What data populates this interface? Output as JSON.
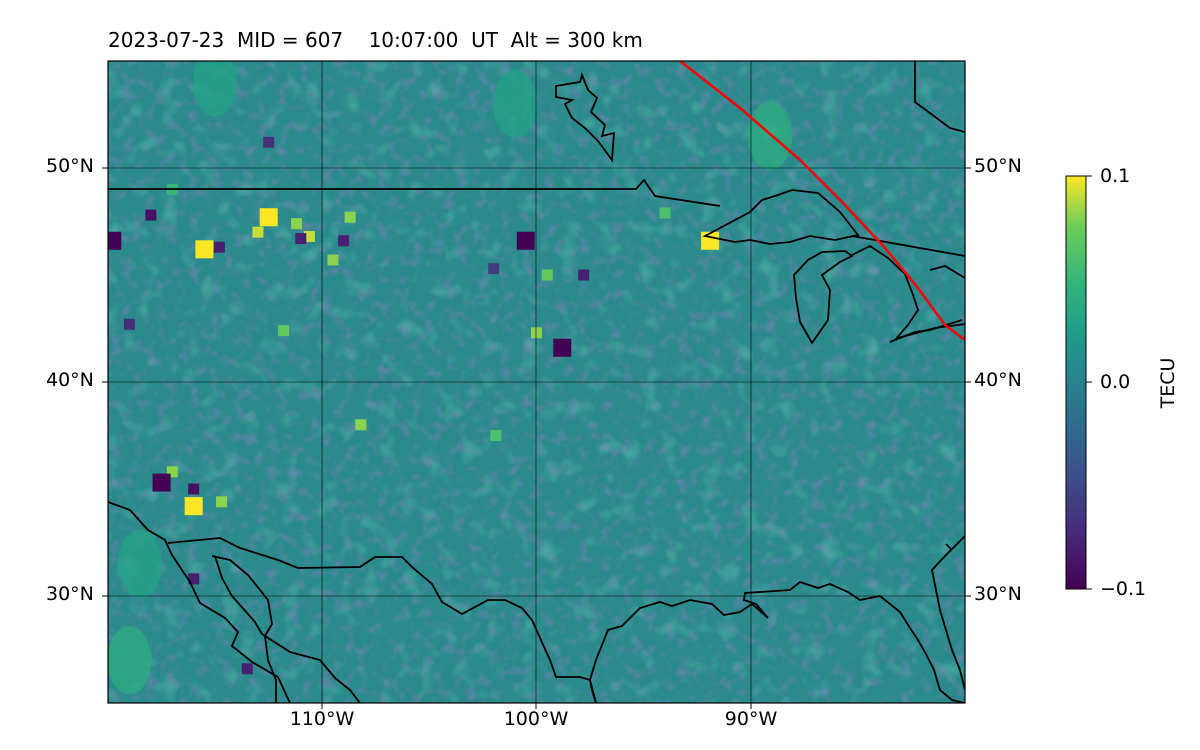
{
  "header": {
    "title": "2023-07-23  MID = 607    10:07:00  UT  Alt = 300 km"
  },
  "map": {
    "projection": "equirectangular",
    "lon_range": [
      -120,
      -80
    ],
    "lat_range": [
      25,
      55
    ],
    "latitude_labels": [
      "50°N",
      "40°N",
      "30°N"
    ],
    "longitude_labels": [
      "110°W",
      "100°W",
      "90°W"
    ],
    "gridlines": true,
    "coastline_color": "#000000",
    "terminator_color": "#ff0000",
    "field": "differential TEC anomaly (viridis)",
    "bright_spots": [
      {
        "lon": -115.5,
        "lat": 46.2,
        "value": 0.1
      },
      {
        "lon": -112.5,
        "lat": 47.7,
        "value": 0.1
      },
      {
        "lon": -113.0,
        "lat": 47.0,
        "value": 0.09
      },
      {
        "lon": -111.2,
        "lat": 47.4,
        "value": 0.08
      },
      {
        "lon": -109.5,
        "lat": 45.7,
        "value": 0.08
      },
      {
        "lon": -110.6,
        "lat": 46.8,
        "value": 0.09
      },
      {
        "lon": -108.7,
        "lat": 47.7,
        "value": 0.08
      },
      {
        "lon": -91.9,
        "lat": 46.6,
        "value": 0.1
      },
      {
        "lon": -100.0,
        "lat": 42.3,
        "value": 0.08
      },
      {
        "lon": -99.5,
        "lat": 45.0,
        "value": 0.07
      },
      {
        "lon": -117.0,
        "lat": 35.8,
        "value": 0.08
      },
      {
        "lon": -116.0,
        "lat": 34.2,
        "value": 0.1
      },
      {
        "lon": -114.7,
        "lat": 34.4,
        "value": 0.08
      },
      {
        "lon": -111.8,
        "lat": 42.4,
        "value": 0.07
      },
      {
        "lon": -108.2,
        "lat": 38.0,
        "value": 0.08
      },
      {
        "lon": -101.9,
        "lat": 37.5,
        "value": 0.06
      },
      {
        "lon": -94.0,
        "lat": 47.9,
        "value": 0.06
      },
      {
        "lon": -117.0,
        "lat": 49.0,
        "value": 0.05
      }
    ],
    "dark_spots": [
      {
        "lon": -119.8,
        "lat": 46.6,
        "value": -0.1
      },
      {
        "lon": -118.0,
        "lat": 47.8,
        "value": -0.09
      },
      {
        "lon": -100.5,
        "lat": 46.6,
        "value": -0.1
      },
      {
        "lon": -98.8,
        "lat": 41.6,
        "value": -0.1
      },
      {
        "lon": -117.5,
        "lat": 35.3,
        "value": -0.1
      },
      {
        "lon": -116.0,
        "lat": 35.0,
        "value": -0.09
      },
      {
        "lon": -114.8,
        "lat": 46.3,
        "value": -0.08
      },
      {
        "lon": -111.0,
        "lat": 46.7,
        "value": -0.08
      },
      {
        "lon": -109.0,
        "lat": 46.6,
        "value": -0.08
      },
      {
        "lon": -97.8,
        "lat": 45.0,
        "value": -0.08
      },
      {
        "lon": -112.5,
        "lat": 51.2,
        "value": -0.07
      },
      {
        "lon": -116.0,
        "lat": 30.8,
        "value": -0.08
      },
      {
        "lon": -113.5,
        "lat": 26.6,
        "value": -0.08
      },
      {
        "lon": -119.0,
        "lat": 42.7,
        "value": -0.07
      },
      {
        "lon": -102.0,
        "lat": 45.3,
        "value": -0.06
      }
    ],
    "green_bands": [
      {
        "lon": -89.1,
        "lat": 51.5,
        "value": 0.04
      },
      {
        "lon": -119.0,
        "lat": 27.0,
        "value": 0.04
      },
      {
        "lon": -118.5,
        "lat": 31.5,
        "value": 0.03
      },
      {
        "lon": -115.0,
        "lat": 54.0,
        "value": 0.03
      },
      {
        "lon": -101.0,
        "lat": 53.0,
        "value": 0.03
      }
    ]
  },
  "colorbar": {
    "label": "TECU",
    "colormap": "viridis",
    "range": [
      -0.1,
      0.1
    ],
    "ticks": [
      "0.1",
      "0.0",
      "−0.1"
    ]
  }
}
